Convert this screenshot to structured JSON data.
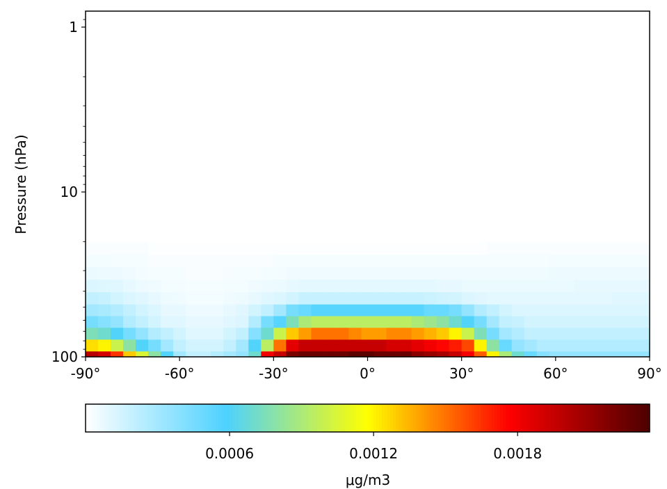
{
  "chart_data": {
    "type": "heatmap",
    "title": "",
    "xlabel": "",
    "ylabel": "Pressure (hPa)",
    "x_ticks": [
      "-90°",
      "-60°",
      "-30°",
      "0°",
      "30°",
      "60°",
      "90°"
    ],
    "x_tick_values": [
      -90,
      -60,
      -30,
      0,
      30,
      60,
      90
    ],
    "xlim": [
      -90,
      90
    ],
    "y_scale": "log",
    "y_inverted": true,
    "y_ticks": [
      "1",
      "10",
      "100"
    ],
    "y_tick_values": [
      1,
      10,
      100
    ],
    "ylim": [
      100,
      0.8
    ],
    "lat_cells": [
      -88,
      -84,
      -80,
      -76,
      -72,
      -68,
      -64,
      -60,
      -56,
      -52,
      -48,
      -44,
      -40,
      -36,
      -32,
      -28,
      -24,
      -20,
      -16,
      -12,
      -8,
      -4,
      0,
      4,
      8,
      12,
      16,
      20,
      24,
      28,
      32,
      36,
      40,
      44,
      48,
      52,
      56,
      60,
      64,
      68,
      72,
      76,
      80,
      84,
      88
    ],
    "pressure_levels": [
      100,
      85,
      72,
      61,
      52,
      44,
      37,
      31,
      26,
      22
    ],
    "values": [
      [
        0.002,
        0.0019,
        0.00165,
        0.0013,
        0.00105,
        0.0008,
        0.0006,
        0.0003,
        0.0002,
        0.0002,
        0.00025,
        0.0003,
        0.00035,
        0.0007,
        0.0018,
        0.00195,
        0.0022,
        0.00225,
        0.00225,
        0.00225,
        0.00225,
        0.0023,
        0.0023,
        0.00225,
        0.00225,
        0.00225,
        0.00215,
        0.0021,
        0.00205,
        0.00195,
        0.0018,
        0.00155,
        0.0012,
        0.0009,
        0.0007,
        0.0005,
        0.0004,
        0.00035,
        0.00035,
        0.00035,
        0.00035,
        0.00035,
        0.00035,
        0.00035,
        0.00035
      ],
      [
        0.00125,
        0.0012,
        0.001,
        0.0008,
        0.0006,
        0.00045,
        0.0003,
        0.0002,
        0.00015,
        0.00015,
        0.00015,
        0.0002,
        0.0003,
        0.0006,
        0.00095,
        0.0015,
        0.00185,
        0.00195,
        0.00195,
        0.00195,
        0.00195,
        0.00195,
        0.00195,
        0.00195,
        0.0019,
        0.0019,
        0.00185,
        0.0018,
        0.00175,
        0.0017,
        0.0016,
        0.0012,
        0.0008,
        0.0005,
        0.00035,
        0.0003,
        0.00025,
        0.00025,
        0.00025,
        0.00025,
        0.00025,
        0.00025,
        0.00025,
        0.00025,
        0.00025
      ],
      [
        0.00075,
        0.0007,
        0.0006,
        0.00045,
        0.00035,
        0.00025,
        0.0002,
        0.00015,
        0.0001,
        0.0001,
        0.0001,
        0.00015,
        0.0002,
        0.0004,
        0.0007,
        0.001,
        0.0013,
        0.0014,
        0.0015,
        0.0015,
        0.0015,
        0.00145,
        0.0014,
        0.0014,
        0.00145,
        0.00145,
        0.0014,
        0.00135,
        0.0013,
        0.0012,
        0.001,
        0.00075,
        0.00045,
        0.0003,
        0.00025,
        0.0002,
        0.0002,
        0.0002,
        0.0002,
        0.0002,
        0.0002,
        0.0002,
        0.0002,
        0.0002,
        0.0002
      ],
      [
        0.00045,
        0.0004,
        0.00035,
        0.00025,
        0.0002,
        0.00015,
        0.0001,
        0.0001,
        8e-05,
        8e-05,
        8e-05,
        0.0001,
        0.00012,
        0.00025,
        0.00045,
        0.00055,
        0.00075,
        0.0009,
        0.00095,
        0.00095,
        0.00095,
        0.00095,
        0.00095,
        0.00095,
        0.00095,
        0.00095,
        0.0009,
        0.00085,
        0.0008,
        0.0007,
        0.0006,
        0.00045,
        0.0003,
        0.0002,
        0.00018,
        0.00015,
        0.00015,
        0.00015,
        0.00015,
        0.00015,
        0.00015,
        0.00015,
        0.00015,
        0.00015,
        0.00015
      ],
      [
        0.0003,
        0.00028,
        0.00025,
        0.0002,
        0.00015,
        0.00012,
        8e-05,
        8e-05,
        6e-05,
        6e-05,
        6e-05,
        8e-05,
        0.0001,
        0.00015,
        0.0002,
        0.0003,
        0.00045,
        0.0005,
        0.00055,
        0.00055,
        0.00055,
        0.00055,
        0.00055,
        0.00055,
        0.00055,
        0.00055,
        0.00055,
        0.0005,
        0.0005,
        0.00045,
        0.00035,
        0.00025,
        0.0002,
        0.00015,
        0.00012,
        0.00012,
        0.00012,
        0.00012,
        0.00012,
        0.00012,
        0.00012,
        0.00012,
        0.00012,
        0.00012,
        0.00012
      ],
      [
        0.0002,
        0.00018,
        0.00015,
        0.00012,
        0.0001,
        8e-05,
        6e-05,
        5e-05,
        4e-05,
        4e-05,
        4e-05,
        5e-05,
        6e-05,
        8e-05,
        0.0001,
        0.00012,
        0.00015,
        0.00018,
        0.00018,
        0.00018,
        0.00018,
        0.00018,
        0.00018,
        0.00018,
        0.00018,
        0.00018,
        0.00018,
        0.00017,
        0.00016,
        0.00015,
        0.00012,
        0.0001,
        9e-05,
        9e-05,
        9e-05,
        9e-05,
        9e-05,
        9e-05,
        9e-05,
        9e-05,
        9e-05,
        9e-05,
        0.0001,
        0.0001,
        0.0001
      ],
      [
        0.00012,
        0.00011,
        0.0001,
        8e-05,
        6e-05,
        5e-05,
        4e-05,
        4e-05,
        3e-05,
        3e-05,
        3e-05,
        4e-05,
        4e-05,
        5e-05,
        6e-05,
        7e-05,
        8e-05,
        9e-05,
        9e-05,
        9e-05,
        9e-05,
        9e-05,
        9e-05,
        9e-05,
        9e-05,
        9e-05,
        9e-05,
        9e-05,
        8e-05,
        8e-05,
        7e-05,
        7e-05,
        7e-05,
        7e-05,
        7e-05,
        7e-05,
        7e-05,
        7e-05,
        7e-05,
        8e-05,
        8e-05,
        8e-05,
        8e-05,
        8e-05,
        8e-05
      ],
      [
        7e-05,
        6e-05,
        6e-05,
        5e-05,
        4e-05,
        3e-05,
        3e-05,
        3e-05,
        2e-05,
        2e-05,
        2e-05,
        3e-05,
        3e-05,
        3e-05,
        4e-05,
        4e-05,
        5e-05,
        5e-05,
        5e-05,
        5e-05,
        5e-05,
        5e-05,
        5e-05,
        5e-05,
        5e-05,
        5e-05,
        5e-05,
        5e-05,
        5e-05,
        5e-05,
        5e-05,
        5e-05,
        5e-05,
        5e-05,
        5e-05,
        5e-05,
        5e-05,
        6e-05,
        6e-05,
        6e-05,
        6e-05,
        6e-05,
        6e-05,
        6e-05,
        6e-05
      ],
      [
        4e-05,
        4e-05,
        3e-05,
        3e-05,
        3e-05,
        2e-05,
        2e-05,
        2e-05,
        2e-05,
        2e-05,
        2e-05,
        2e-05,
        2e-05,
        2e-05,
        2e-05,
        3e-05,
        3e-05,
        3e-05,
        3e-05,
        3e-05,
        3e-05,
        3e-05,
        3e-05,
        3e-05,
        3e-05,
        3e-05,
        3e-05,
        3e-05,
        3e-05,
        3e-05,
        3e-05,
        3e-05,
        3e-05,
        3e-05,
        3e-05,
        3e-05,
        3e-05,
        4e-05,
        4e-05,
        4e-05,
        4e-05,
        4e-05,
        4e-05,
        4e-05,
        4e-05
      ],
      [
        2e-05,
        2e-05,
        2e-05,
        2e-05,
        2e-05,
        1e-05,
        1e-05,
        1e-05,
        1e-05,
        1e-05,
        1e-05,
        1e-05,
        1e-05,
        1e-05,
        1e-05,
        1e-05,
        1e-05,
        1e-05,
        1e-05,
        1e-05,
        1e-05,
        1e-05,
        1e-05,
        1e-05,
        1e-05,
        1e-05,
        1e-05,
        1e-05,
        1e-05,
        1e-05,
        1e-05,
        1e-05,
        2e-05,
        2e-05,
        2e-05,
        2e-05,
        2e-05,
        2e-05,
        2e-05,
        2e-05,
        2e-05,
        2e-05,
        2e-05,
        2e-05,
        2e-05
      ]
    ],
    "colorbar": {
      "label": "μg/m3",
      "ticks": [
        "0.0006",
        "0.0012",
        "0.0018"
      ],
      "tick_values": [
        0.0006,
        0.0012,
        0.0018
      ],
      "range": [
        0,
        0.00235
      ],
      "orientation": "horizontal",
      "colormap_stops": [
        "#ffffff",
        "#4dd2ff",
        "#ffff00",
        "#ff0000",
        "#4d0000"
      ]
    }
  }
}
